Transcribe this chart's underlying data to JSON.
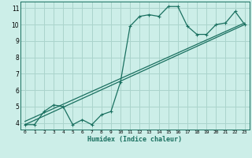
{
  "xlabel": "Humidex (Indice chaleur)",
  "background_color": "#cceee8",
  "grid_color": "#aad4cc",
  "line_color": "#1a7060",
  "x_ticks": [
    0,
    1,
    2,
    3,
    4,
    5,
    6,
    7,
    8,
    9,
    10,
    11,
    12,
    13,
    14,
    15,
    16,
    17,
    18,
    19,
    20,
    21,
    22,
    23
  ],
  "y_ticks": [
    4,
    5,
    6,
    7,
    8,
    9,
    10,
    11
  ],
  "ylim": [
    3.6,
    11.4
  ],
  "xlim": [
    -0.5,
    23.5
  ],
  "series1_x": [
    0,
    1,
    2,
    3,
    4,
    5,
    6,
    7,
    8,
    9,
    10,
    11,
    12,
    13,
    14,
    15,
    16,
    17,
    18,
    19,
    20,
    21,
    22,
    23
  ],
  "series1_y": [
    3.9,
    3.9,
    4.7,
    5.1,
    5.0,
    3.9,
    4.2,
    3.9,
    4.5,
    4.7,
    6.5,
    9.9,
    10.5,
    10.6,
    10.5,
    11.1,
    11.1,
    9.9,
    9.4,
    9.4,
    10.0,
    10.1,
    10.8,
    10.0
  ],
  "trend1_x": [
    0,
    23
  ],
  "trend1_y": [
    4.1,
    10.1
  ],
  "trend2_x": [
    0,
    23
  ],
  "trend2_y": [
    3.9,
    10.0
  ]
}
